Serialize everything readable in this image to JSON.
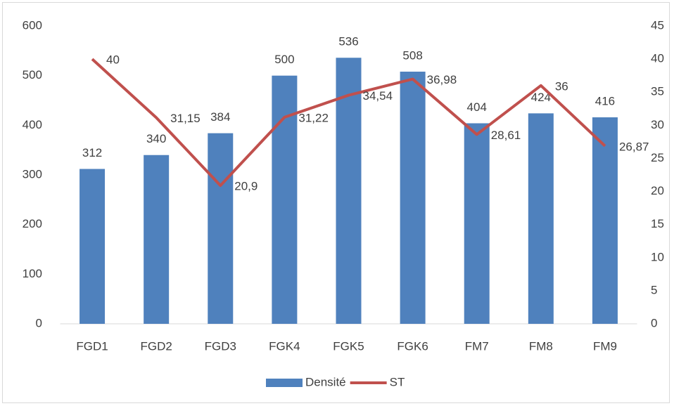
{
  "chart_data": {
    "type": "bar",
    "categories": [
      "FGD1",
      "FGD2",
      "FGD3",
      "FGK4",
      "FGK5",
      "FGK6",
      "FM7",
      "FM8",
      "FM9"
    ],
    "series": [
      {
        "name": "Densité",
        "type": "bar",
        "color": "#4f81bd",
        "values": [
          312,
          340,
          384,
          500,
          536,
          508,
          404,
          424,
          416
        ]
      },
      {
        "name": "ST",
        "type": "line",
        "axis": "y2",
        "color": "#c0504d",
        "values": [
          40,
          31.15,
          20.9,
          31.22,
          34.54,
          36.98,
          28.61,
          36,
          26.87
        ],
        "value_labels": [
          "40",
          "31,15",
          "20,9",
          "31,22",
          "34,54",
          "36,98",
          "28,61",
          "36",
          "26,87"
        ]
      }
    ],
    "ylim": [
      0,
      600
    ],
    "yticks": [
      0,
      100,
      200,
      300,
      400,
      500,
      600
    ],
    "y2lim": [
      0,
      45
    ],
    "y2ticks": [
      0,
      5,
      10,
      15,
      20,
      25,
      30,
      35,
      40,
      45
    ],
    "grid": false,
    "legend": "bottom"
  }
}
